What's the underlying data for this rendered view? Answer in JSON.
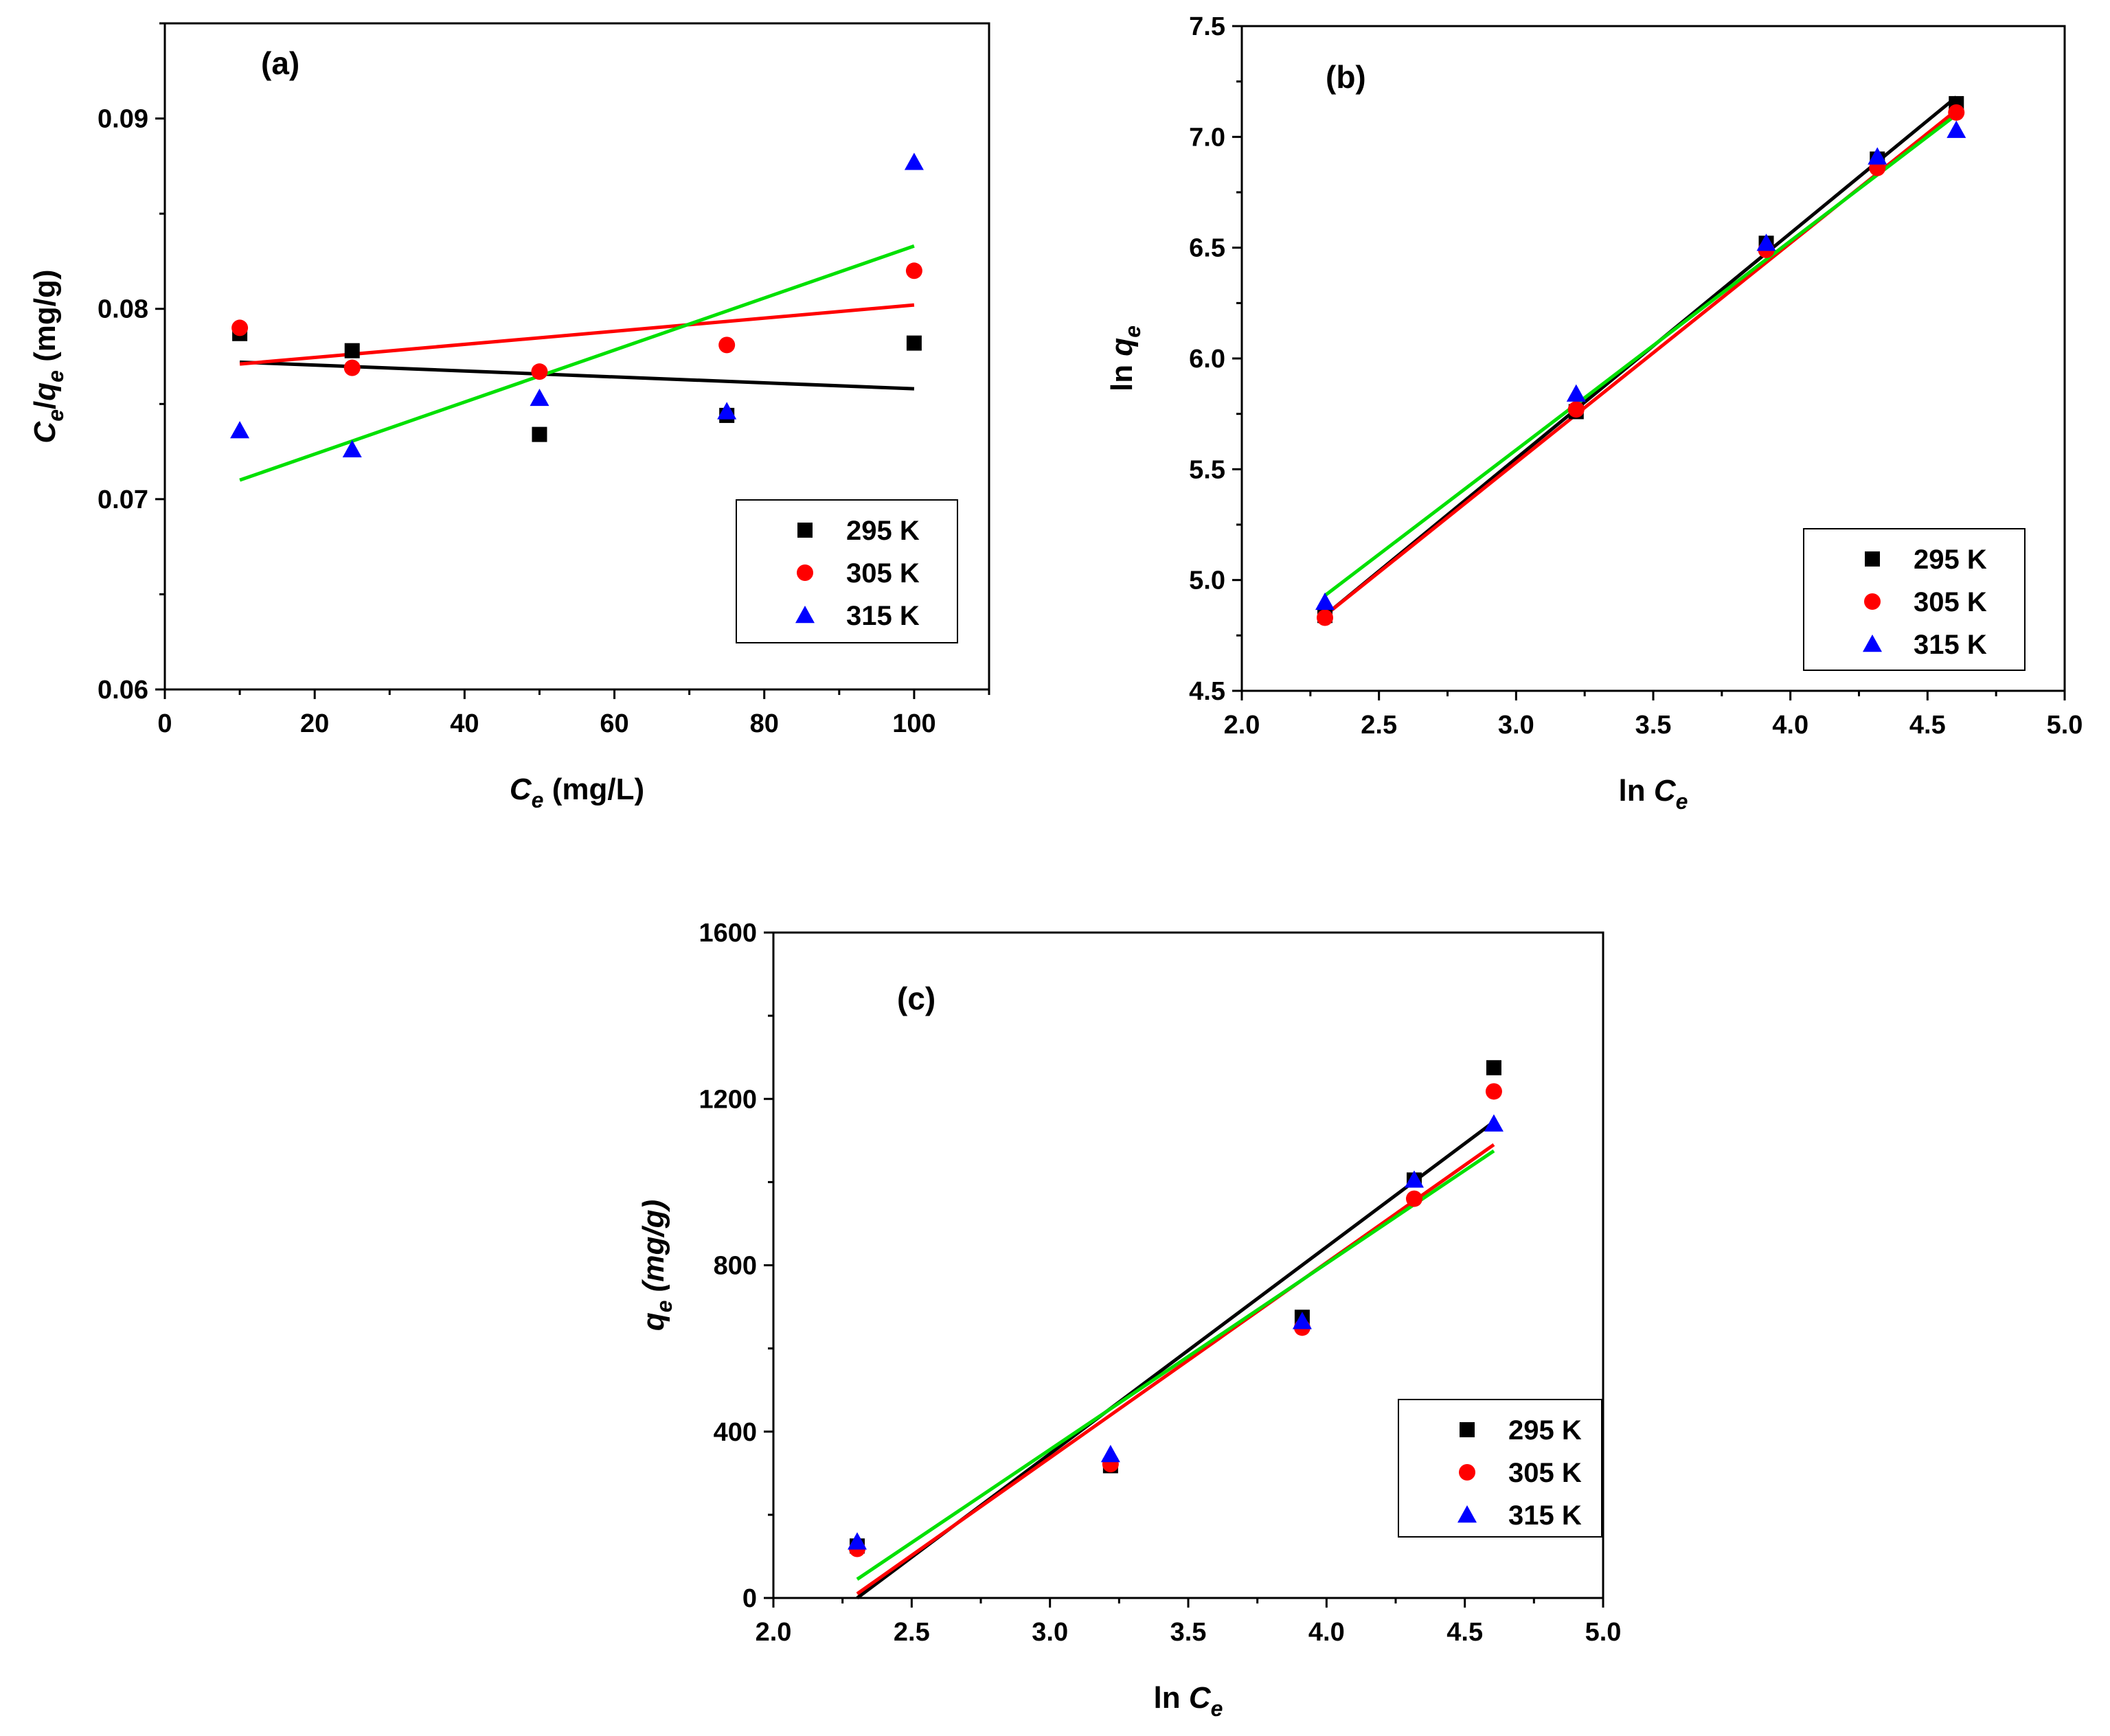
{
  "colors": {
    "s295": "#000000",
    "s305": "#ff0000",
    "s315": "#0000ff",
    "fit295": "#000000",
    "fit305": "#ff0000",
    "fit315": "#00e000"
  },
  "chart_data": [
    {
      "type": "scatter",
      "panel": "(a)",
      "xlabel": {
        "main": "C",
        "sub": "e",
        "rest": " (mg/L)"
      },
      "ylabel": {
        "main": "C",
        "sub1": "e",
        "slash": "/",
        "main2": "q",
        "sub2": "e",
        "rest": " (mg/g)"
      },
      "xlim": [
        0,
        110
      ],
      "ylim": [
        0.06,
        0.095
      ],
      "xticks": [
        0,
        20,
        40,
        60,
        80,
        100
      ],
      "xtick_labels": [
        "0",
        "20",
        "40",
        "60",
        "80",
        "100"
      ],
      "yticks": [
        0.06,
        0.07,
        0.08,
        0.09
      ],
      "ytick_labels": [
        "0.06",
        "0.07",
        "0.08",
        "0.09"
      ],
      "legend": "bottom-right",
      "series": [
        {
          "name": "295 K",
          "marker": "square",
          "x": [
            10,
            25,
            50,
            75,
            100
          ],
          "y": [
            0.0787,
            0.0778,
            0.0734,
            0.0744,
            0.0782
          ],
          "fit": [
            [
              10,
              0.0772
            ],
            [
              100,
              0.0758
            ]
          ]
        },
        {
          "name": "305 K",
          "marker": "circle",
          "x": [
            10,
            25,
            50,
            75,
            100
          ],
          "y": [
            0.079,
            0.0769,
            0.0767,
            0.0781,
            0.082
          ],
          "fit": [
            [
              10,
              0.0771
            ],
            [
              100,
              0.0802
            ]
          ]
        },
        {
          "name": "315 K",
          "marker": "triangle",
          "x": [
            10,
            25,
            50,
            75,
            100
          ],
          "y": [
            0.0736,
            0.0726,
            0.0753,
            0.0746,
            0.0877
          ],
          "fit": [
            [
              10,
              0.071
            ],
            [
              100,
              0.0833
            ]
          ]
        }
      ]
    },
    {
      "type": "scatter",
      "panel": "(b)",
      "xlabel": {
        "main": "ln ",
        "it": "C",
        "sub": "e"
      },
      "ylabel": {
        "main": "ln ",
        "it": "q",
        "sub": "e"
      },
      "xlim": [
        2.0,
        5.0
      ],
      "ylim": [
        4.5,
        7.5
      ],
      "xticks": [
        2.0,
        2.5,
        3.0,
        3.5,
        4.0,
        4.5,
        5.0
      ],
      "xtick_labels": [
        "2.0",
        "2.5",
        "3.0",
        "3.5",
        "4.0",
        "4.5",
        "5.0"
      ],
      "yticks": [
        4.5,
        5.0,
        5.5,
        6.0,
        6.5,
        7.0,
        7.5
      ],
      "ytick_labels": [
        "4.5",
        "5.0",
        "5.5",
        "6.0",
        "6.5",
        "7.0",
        "7.5"
      ],
      "legend": "bottom-right",
      "series": [
        {
          "name": "295 K",
          "marker": "square",
          "x": [
            2.303,
            3.219,
            3.912,
            4.317,
            4.605
          ],
          "y": [
            4.84,
            5.76,
            6.52,
            6.9,
            7.15
          ],
          "fit": [
            [
              2.303,
              4.84
            ],
            [
              4.605,
              7.18
            ]
          ]
        },
        {
          "name": "305 K",
          "marker": "circle",
          "x": [
            2.303,
            3.219,
            3.912,
            4.317,
            4.605
          ],
          "y": [
            4.83,
            5.77,
            6.49,
            6.86,
            7.11
          ],
          "fit": [
            [
              2.303,
              4.84
            ],
            [
              4.605,
              7.12
            ]
          ]
        },
        {
          "name": "315 K",
          "marker": "triangle",
          "x": [
            2.303,
            3.219,
            3.912,
            4.317,
            4.605
          ],
          "y": [
            4.9,
            5.84,
            6.52,
            6.91,
            7.03
          ],
          "fit": [
            [
              2.303,
              4.93
            ],
            [
              4.605,
              7.1
            ]
          ]
        }
      ]
    },
    {
      "type": "scatter",
      "panel": "(c)",
      "xlabel": {
        "main": "ln ",
        "it": "C",
        "sub": "e"
      },
      "ylabel": {
        "main": "",
        "it": "q",
        "sub": "e",
        "rest": " (mg/g)"
      },
      "xlim": [
        2.0,
        5.0
      ],
      "ylim": [
        0,
        1600
      ],
      "xticks": [
        2.0,
        2.5,
        3.0,
        3.5,
        4.0,
        4.5,
        5.0
      ],
      "xtick_labels": [
        "2.0",
        "2.5",
        "3.0",
        "3.5",
        "4.0",
        "4.5",
        "5.0"
      ],
      "yticks": [
        0,
        400,
        800,
        1200,
        1600
      ],
      "ytick_labels": [
        "0",
        "400",
        "800",
        "1200",
        "1600"
      ],
      "legend": "bottom-right",
      "series": [
        {
          "name": "295 K",
          "marker": "square",
          "x": [
            2.303,
            3.219,
            3.912,
            4.317,
            4.605
          ],
          "y": [
            125,
            318,
            675,
            1005,
            1275
          ],
          "fit": [
            [
              2.303,
              0
            ],
            [
              4.605,
              1145
            ]
          ]
        },
        {
          "name": "305 K",
          "marker": "circle",
          "x": [
            2.303,
            3.219,
            3.912,
            4.317,
            4.605
          ],
          "y": [
            118,
            322,
            650,
            960,
            1218
          ],
          "fit": [
            [
              2.303,
              10
            ],
            [
              4.605,
              1090
            ]
          ]
        },
        {
          "name": "315 K",
          "marker": "triangle",
          "x": [
            2.303,
            3.219,
            3.912,
            4.317,
            4.605
          ],
          "y": [
            135,
            345,
            665,
            1005,
            1140
          ],
          "fit": [
            [
              2.303,
              45
            ],
            [
              4.605,
              1075
            ]
          ]
        }
      ]
    }
  ]
}
